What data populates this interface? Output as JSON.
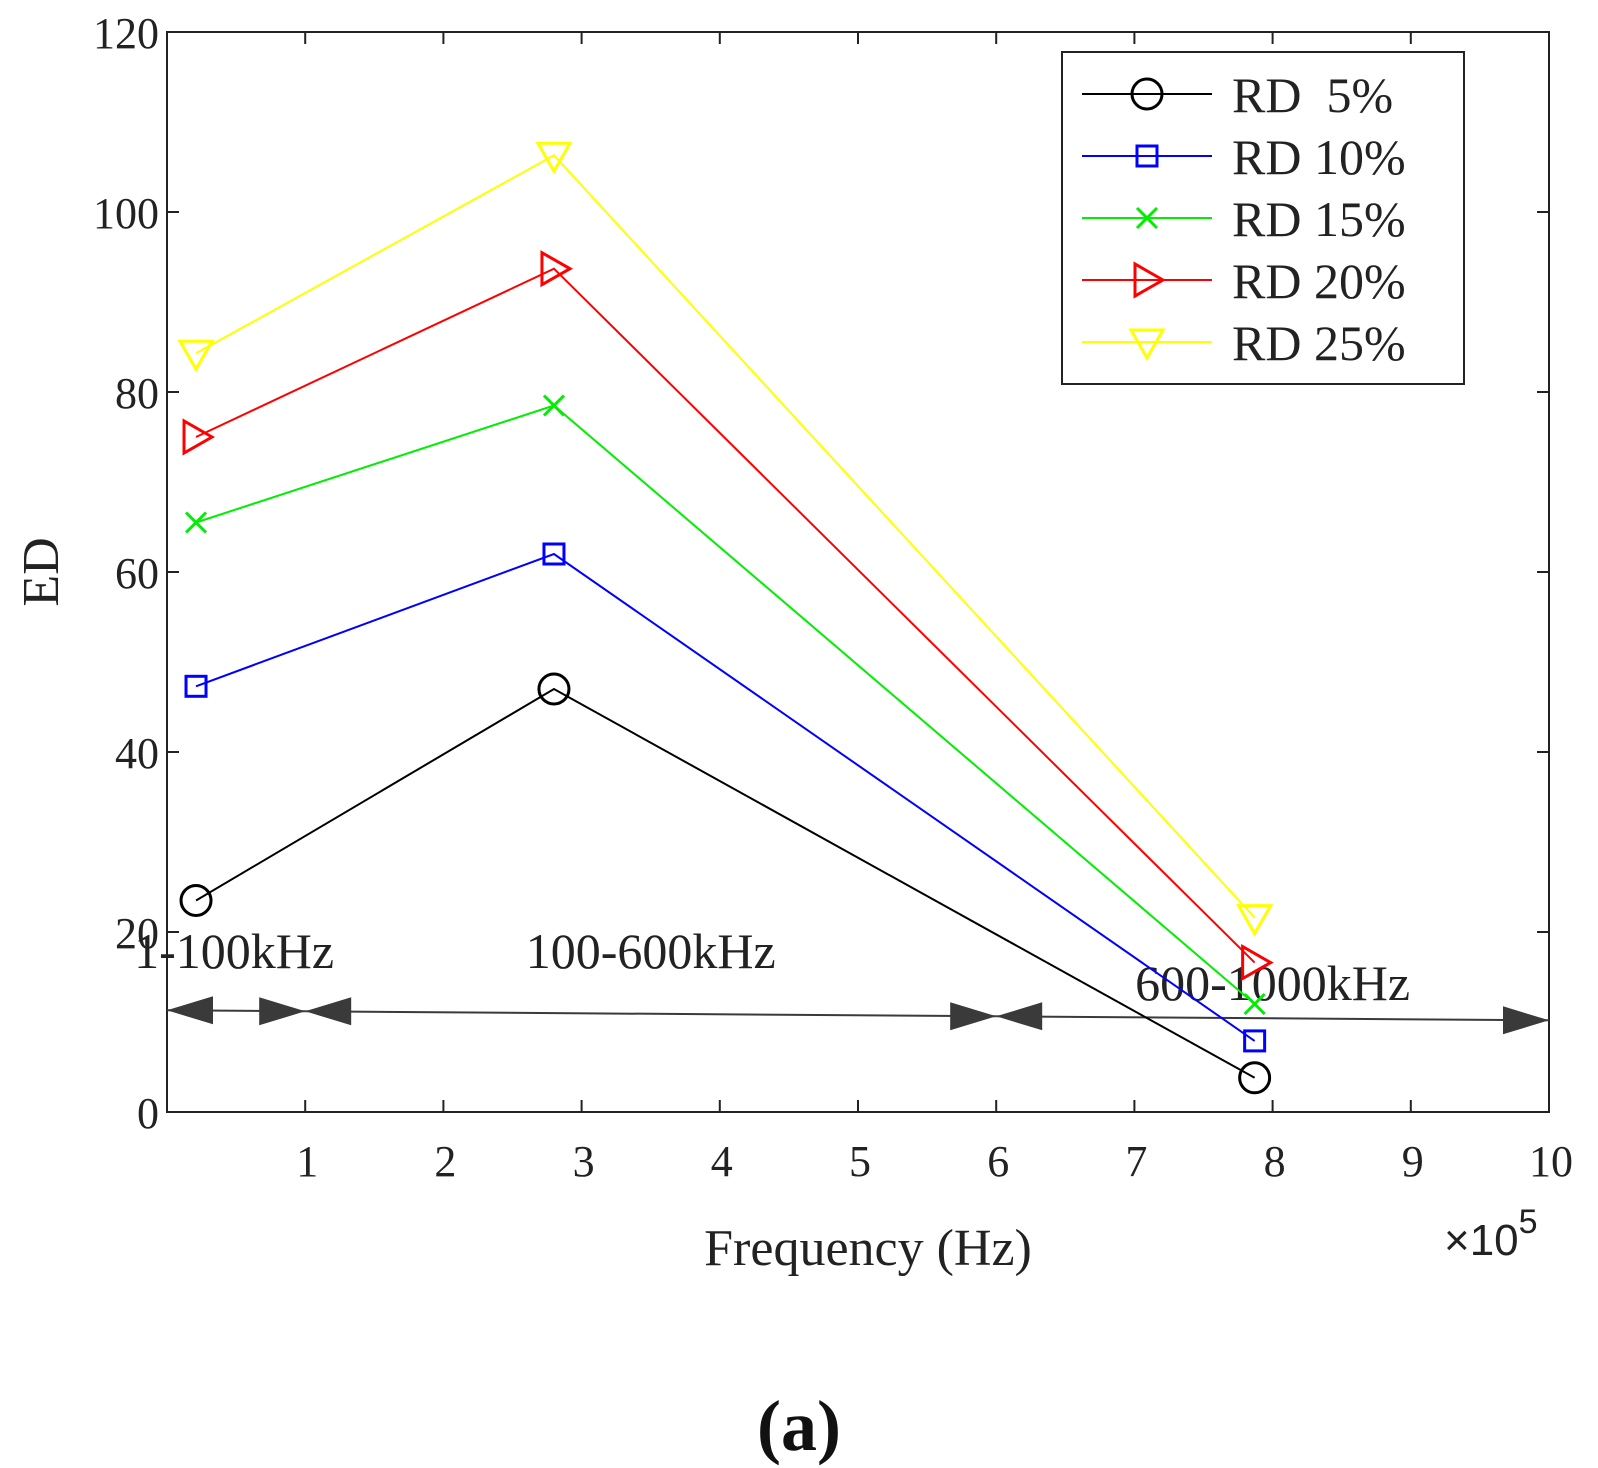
{
  "chart_data": {
    "type": "line",
    "title": "",
    "xlabel": "Frequency (Hz)",
    "ylabel": "ED",
    "x_multiplier_label": "×10",
    "x_multiplier_exponent": "5",
    "xlim": [
      0,
      10
    ],
    "ylim": [
      0,
      120
    ],
    "xticks": [
      1,
      2,
      3,
      4,
      5,
      6,
      7,
      8,
      9,
      10
    ],
    "yticks": [
      0,
      20,
      40,
      60,
      80,
      100,
      120
    ],
    "x": [
      0.21,
      2.8,
      7.87
    ],
    "series": [
      {
        "name": "RD  5%",
        "color": "#000000",
        "marker": "circle",
        "values": [
          23.5,
          47,
          3.8
        ]
      },
      {
        "name": "RD 10%",
        "color": "#0000ff",
        "marker": "square",
        "values": [
          47.3,
          62,
          7.9
        ]
      },
      {
        "name": "RD 15%",
        "color": "#00ee00",
        "marker": "x",
        "values": [
          65.5,
          78.5,
          12
        ]
      },
      {
        "name": "RD 20%",
        "color": "#ff0000",
        "marker": "triangle-right",
        "values": [
          75,
          93.7,
          16.6
        ]
      },
      {
        "name": "RD 25%",
        "color": "#ffff00",
        "marker": "triangle-down",
        "values": [
          84.3,
          106.3,
          21.6
        ]
      }
    ],
    "legend_position": "top-right",
    "annotations": [
      {
        "text": "1-100kHz",
        "from": 0,
        "to": 1
      },
      {
        "text": "100-600kHz",
        "from": 1,
        "to": 6
      },
      {
        "text": "600-1000kHz",
        "from": 6,
        "to": 10
      }
    ]
  },
  "panel_label": "(a)"
}
